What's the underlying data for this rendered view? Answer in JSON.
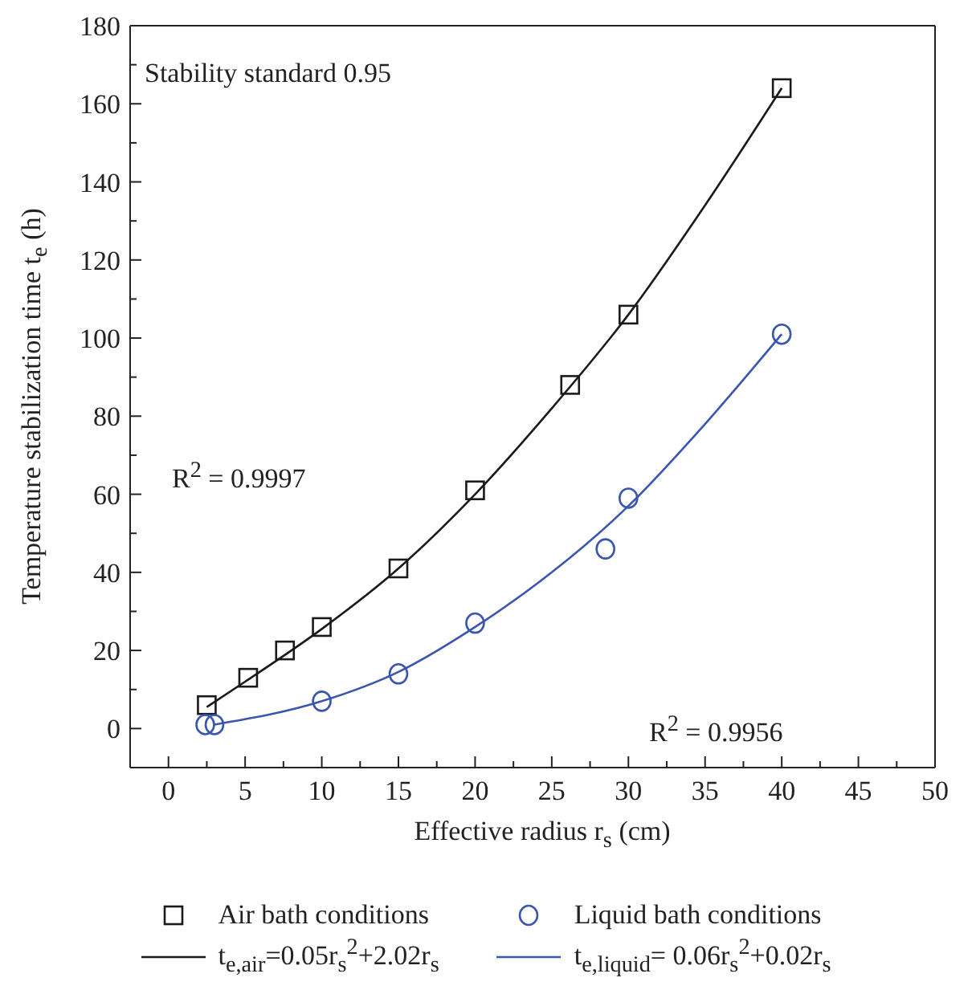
{
  "chart_data": {
    "type": "scatter",
    "xlabel": "Effective radius r$_{s}$ (cm)",
    "ylabel": "Temperature stabilization time t$_{e}$ (h)",
    "annotations": [
      "Stability standard 0.95",
      "R$^{2}$ = 0.9997",
      "R$^{2}$ = 0.9956"
    ],
    "series": [
      {
        "name": "Air bath conditions",
        "marker": "square",
        "color": "#1a1a1a",
        "x": [
          2.5,
          5.2,
          7.6,
          10,
          15,
          20,
          26.2,
          30,
          40
        ],
        "values": [
          6,
          13,
          20,
          26,
          41,
          61,
          88,
          106,
          164
        ]
      },
      {
        "name": "Liquid bath conditions",
        "marker": "circle",
        "color": "#3a56b0",
        "x": [
          2.4,
          3,
          10,
          15,
          20,
          28.5,
          30,
          40
        ],
        "values": [
          1,
          1,
          7,
          14,
          27,
          46,
          59,
          101
        ]
      },
      {
        "name": "t$_{e,air}$=0.05r$_{s}$$^{2}$+2.02r$_{s}$",
        "type": "line",
        "marker": "none",
        "color": "#1a1a1a",
        "x": [
          2.5,
          5,
          10,
          15,
          20,
          25,
          30,
          35,
          40
        ],
        "values": [
          5.5,
          12,
          25.5,
          41,
          60,
          82,
          106,
          134,
          164
        ]
      },
      {
        "name": "t$_{e,liquid}$= 0.06r$_{s}$$^{2}$+0.02r$_{s}$",
        "type": "line",
        "marker": "none",
        "color": "#3a56b0",
        "x": [
          3,
          10,
          15,
          20,
          25,
          30,
          35,
          40
        ],
        "values": [
          1,
          7,
          14.5,
          26,
          40,
          57,
          78,
          101
        ]
      }
    ],
    "xlim": [
      -2.5,
      50
    ],
    "xticks": [
      0,
      {
        "value": 2.5,
        "label": null
      },
      5,
      {
        "value": 7.5,
        "label": null
      },
      10,
      {
        "value": 12.5,
        "label": null
      },
      15,
      {
        "value": 17.5,
        "label": null
      },
      20,
      {
        "value": 22.5,
        "label": null
      },
      25,
      {
        "value": 27.5,
        "label": null
      },
      30,
      {
        "value": 32.5,
        "label": null
      },
      35,
      {
        "value": 37.5,
        "label": null
      },
      40,
      {
        "value": 42.5,
        "label": null
      },
      45,
      {
        "value": 47.5,
        "label": null
      },
      50
    ],
    "ylim": [
      -10,
      180
    ],
    "yticks": [
      0,
      {
        "value": 10,
        "label": null
      },
      20,
      {
        "value": 30,
        "label": null
      },
      40,
      {
        "value": 50,
        "label": null
      },
      60,
      {
        "value": 70,
        "label": null
      },
      80,
      {
        "value": 90,
        "label": null
      },
      100,
      {
        "value": 110,
        "label": null
      },
      120,
      {
        "value": 130,
        "label": null
      },
      140,
      {
        "value": 150,
        "label": null
      },
      160,
      {
        "value": 170,
        "label": null
      },
      180
    ],
    "legend": "bottom"
  }
}
